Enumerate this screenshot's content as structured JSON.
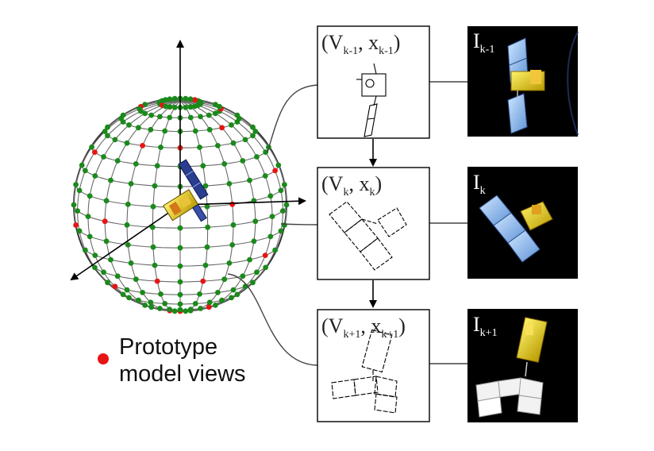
{
  "legend": {
    "line1": "Prototype",
    "line2": "model views",
    "marker_color": "#e81414"
  },
  "colors": {
    "grid_point": "#1a8a1a",
    "prototype_point": "#e81414",
    "sphere_lines": "#555555",
    "frame_bg": "#000000"
  },
  "frames": [
    {
      "view_label": {
        "base_v": "(V",
        "sub_v": "k-1",
        "comma": ", x",
        "sub_x": "k-1",
        "close": ")"
      },
      "image_label": {
        "base": "I",
        "sub": "k-1"
      }
    },
    {
      "view_label": {
        "base_v": "(V",
        "sub_v": "k",
        "comma": ", x",
        "sub_x": "k",
        "close": ")"
      },
      "image_label": {
        "base": "I",
        "sub": "k"
      }
    },
    {
      "view_label": {
        "base_v": "(V",
        "sub_v": "k+1",
        "comma": ", x",
        "sub_x": "k+1",
        "close": ")"
      },
      "image_label": {
        "base": "I",
        "sub": "k+1"
      }
    }
  ]
}
